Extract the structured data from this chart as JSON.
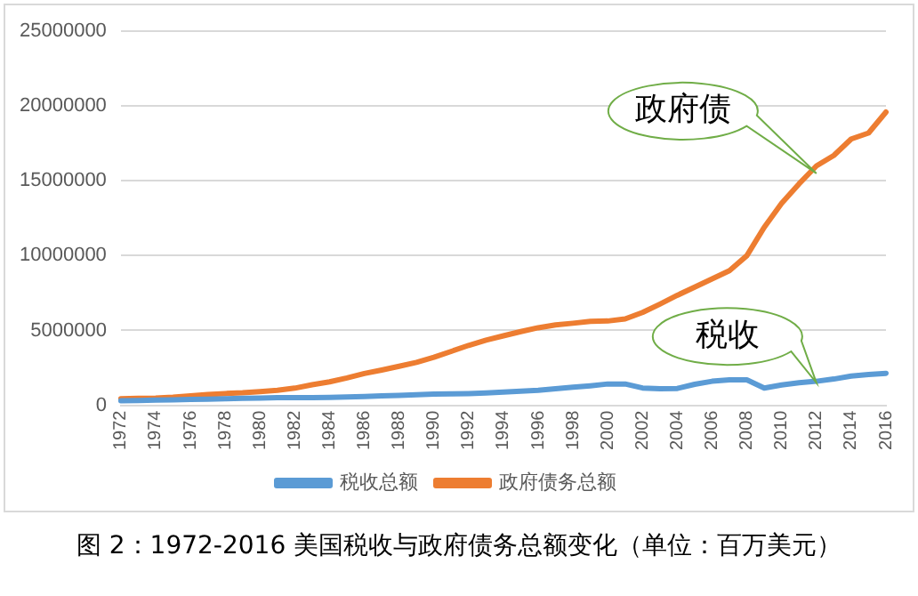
{
  "chart_data": {
    "type": "line",
    "title": "图 2：1972-2016 美国税收与政府债务总额变化（单位：百万美元）",
    "categories": [
      "1972",
      null,
      "1974",
      null,
      "1976",
      null,
      "1978",
      null,
      "1980",
      null,
      "1982",
      null,
      "1984",
      null,
      "1986",
      null,
      "1988",
      null,
      "1990",
      null,
      "1992",
      null,
      "1994",
      null,
      "1996",
      null,
      "1998",
      null,
      "2000",
      null,
      "2002",
      null,
      "2004",
      null,
      "2006",
      null,
      "2008",
      null,
      "2010",
      null,
      "2012",
      null,
      "2014",
      null,
      "2016"
    ],
    "series": [
      {
        "name": "税收总额",
        "color": "#5b9bd5",
        "values": [
          300000,
          320000,
          340000,
          360000,
          380000,
          400000,
          430000,
          460000,
          480000,
          500000,
          500000,
          500000,
          520000,
          550000,
          580000,
          620000,
          650000,
          700000,
          740000,
          760000,
          780000,
          820000,
          880000,
          940000,
          1000000,
          1100000,
          1200000,
          1300000,
          1420000,
          1420000,
          1150000,
          1100000,
          1120000,
          1400000,
          1600000,
          1700000,
          1690000,
          1150000,
          1350000,
          1500000,
          1600000,
          1750000,
          1950000,
          2050000,
          2130000
        ]
      },
      {
        "name": "政府债务总额",
        "color": "#ed7d31",
        "values": [
          430000,
          460000,
          480000,
          540000,
          630000,
          710000,
          780000,
          830000,
          910000,
          1000000,
          1140000,
          1370000,
          1560000,
          1820000,
          2120000,
          2350000,
          2600000,
          2860000,
          3200000,
          3600000,
          4000000,
          4350000,
          4640000,
          4920000,
          5180000,
          5370000,
          5480000,
          5600000,
          5630000,
          5770000,
          6200000,
          6760000,
          7350000,
          7900000,
          8450000,
          9000000,
          10000000,
          11900000,
          13500000,
          14800000,
          16000000,
          16700000,
          17800000,
          18200000,
          19600000
        ]
      }
    ],
    "ylim": [
      0,
      25000000
    ],
    "yticks": [
      0,
      5000000,
      10000000,
      15000000,
      20000000,
      25000000
    ],
    "grid": "y",
    "legend": "bottom",
    "marker": "none",
    "line_style": "solid",
    "annotations": [
      {
        "text": "政府债",
        "x": "2012",
        "y": 15500000
      },
      {
        "text": "税收",
        "x": "2012",
        "y": 1500000
      }
    ]
  }
}
